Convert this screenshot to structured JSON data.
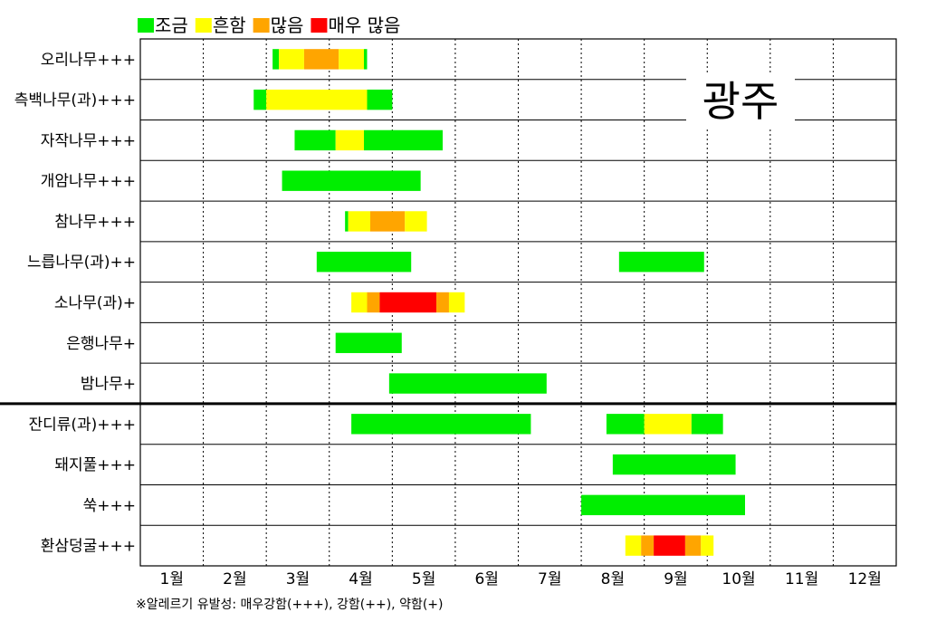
{
  "chart_data": {
    "type": "bar",
    "subtype": "gantt-timeline",
    "title": "광주",
    "legend": [
      {
        "key": "low",
        "label": "조금",
        "color": "#00ee00"
      },
      {
        "key": "common",
        "label": "흔함",
        "color": "#ffff00"
      },
      {
        "key": "many",
        "label": "많음",
        "color": "#ffa500"
      },
      {
        "key": "very_many",
        "label": "매우 많음",
        "color": "#ff0000"
      }
    ],
    "legend_position": "top-left",
    "x_ticks": [
      "1월",
      "2월",
      "3월",
      "4월",
      "5월",
      "6월",
      "7월",
      "8월",
      "9월",
      "10월",
      "11월",
      "12월"
    ],
    "xlim": [
      1,
      13
    ],
    "grid": "vertical-dotted",
    "footnote": "※알레르기 유발성: 매우강함(+++), 강함(++), 약함(+)",
    "group_divider_after_row": 9,
    "rows": [
      {
        "label": "오리나무+++",
        "segments": [
          {
            "start": 3.1,
            "end": 3.2,
            "level": "low"
          },
          {
            "start": 3.2,
            "end": 3.6,
            "level": "common"
          },
          {
            "start": 3.6,
            "end": 4.15,
            "level": "many"
          },
          {
            "start": 4.15,
            "end": 4.55,
            "level": "common"
          },
          {
            "start": 4.55,
            "end": 4.6,
            "level": "low"
          }
        ]
      },
      {
        "label": "측백나무(과)+++",
        "segments": [
          {
            "start": 2.8,
            "end": 3.0,
            "level": "low"
          },
          {
            "start": 3.0,
            "end": 4.6,
            "level": "common"
          },
          {
            "start": 4.6,
            "end": 5.0,
            "level": "low"
          }
        ]
      },
      {
        "label": "자작나무+++",
        "segments": [
          {
            "start": 3.45,
            "end": 4.1,
            "level": "low"
          },
          {
            "start": 4.1,
            "end": 4.55,
            "level": "common"
          },
          {
            "start": 4.55,
            "end": 5.8,
            "level": "low"
          }
        ]
      },
      {
        "label": "개암나무+++",
        "segments": [
          {
            "start": 3.25,
            "end": 5.45,
            "level": "low"
          }
        ]
      },
      {
        "label": "참나무+++",
        "segments": [
          {
            "start": 4.25,
            "end": 4.3,
            "level": "low"
          },
          {
            "start": 4.3,
            "end": 4.65,
            "level": "common"
          },
          {
            "start": 4.65,
            "end": 5.2,
            "level": "many"
          },
          {
            "start": 5.2,
            "end": 5.55,
            "level": "common"
          }
        ]
      },
      {
        "label": "느릅나무(과)++",
        "segments": [
          {
            "start": 3.8,
            "end": 5.3,
            "level": "low"
          },
          {
            "start": 8.6,
            "end": 9.95,
            "level": "low"
          }
        ]
      },
      {
        "label": "소나무(과)+",
        "segments": [
          {
            "start": 4.35,
            "end": 4.6,
            "level": "common"
          },
          {
            "start": 4.6,
            "end": 4.8,
            "level": "many"
          },
          {
            "start": 4.8,
            "end": 5.7,
            "level": "very_many"
          },
          {
            "start": 5.7,
            "end": 5.9,
            "level": "many"
          },
          {
            "start": 5.9,
            "end": 6.15,
            "level": "common"
          }
        ]
      },
      {
        "label": "은행나무+",
        "segments": [
          {
            "start": 4.1,
            "end": 5.15,
            "level": "low"
          }
        ]
      },
      {
        "label": "밤나무+",
        "segments": [
          {
            "start": 4.95,
            "end": 7.45,
            "level": "low"
          }
        ]
      },
      {
        "label": "잔디류(과)+++",
        "segments": [
          {
            "start": 4.35,
            "end": 7.2,
            "level": "low"
          },
          {
            "start": 8.4,
            "end": 9.0,
            "level": "low"
          },
          {
            "start": 9.0,
            "end": 9.75,
            "level": "common"
          },
          {
            "start": 9.75,
            "end": 10.25,
            "level": "low"
          }
        ]
      },
      {
        "label": "돼지풀+++",
        "segments": [
          {
            "start": 8.5,
            "end": 10.45,
            "level": "low"
          }
        ]
      },
      {
        "label": "쑥+++",
        "segments": [
          {
            "start": 8.0,
            "end": 10.6,
            "level": "low"
          }
        ]
      },
      {
        "label": "환삼덩굴+++",
        "segments": [
          {
            "start": 8.7,
            "end": 8.95,
            "level": "common"
          },
          {
            "start": 8.95,
            "end": 9.15,
            "level": "many"
          },
          {
            "start": 9.15,
            "end": 9.65,
            "level": "very_many"
          },
          {
            "start": 9.65,
            "end": 9.9,
            "level": "many"
          },
          {
            "start": 9.9,
            "end": 10.1,
            "level": "common"
          }
        ]
      }
    ]
  }
}
